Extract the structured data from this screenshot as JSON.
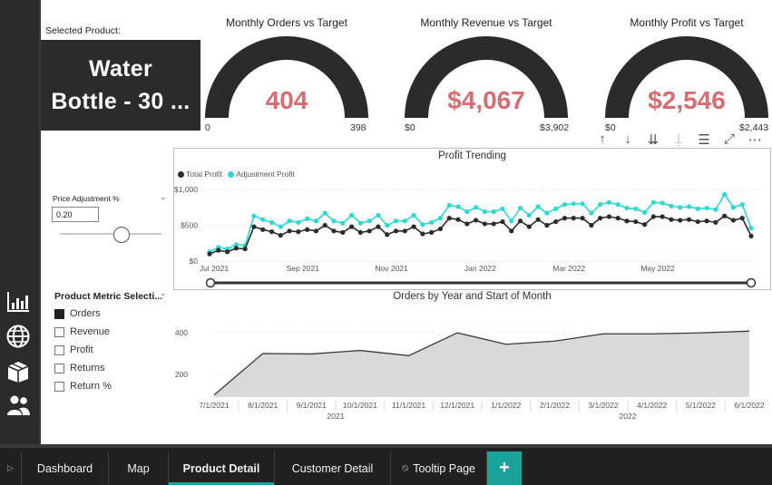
{
  "nav": {
    "icons": [
      "bar-chart-icon",
      "globe-icon",
      "box-icon",
      "users-icon"
    ]
  },
  "selected_product": {
    "label": "Selected Product:",
    "line1": "Water",
    "line2": "Bottle - 30 ..."
  },
  "gauges": [
    {
      "title": "Monthly Orders vs Target",
      "value": "404",
      "min": "0",
      "max": "398",
      "fraction": 1.0
    },
    {
      "title": "Monthly Revenue vs Target",
      "value": "$4,067",
      "min": "$0",
      "max": "$3,902",
      "fraction": 1.0
    },
    {
      "title": "Monthly Profit vs Target",
      "value": "$2,546",
      "min": "$0",
      "max": "$2,443",
      "fraction": 1.0
    }
  ],
  "visual_header_icons": [
    "arrow-up-icon",
    "arrow-down-icon",
    "double-arrow-down-icon",
    "expand-hierarchy-icon",
    "filter-icon",
    "focus-mode-icon",
    "more-options-icon"
  ],
  "price_adjustment": {
    "title": "Price Adjustment %",
    "value": "0.20",
    "slider_fraction": 0.6
  },
  "metric_selection": {
    "title": "Product Metric Selecti...",
    "items": [
      {
        "label": "Orders",
        "checked": true
      },
      {
        "label": "Revenue",
        "checked": false
      },
      {
        "label": "Profit",
        "checked": false
      },
      {
        "label": "Returns",
        "checked": false
      },
      {
        "label": "Return %",
        "checked": false
      }
    ]
  },
  "colors": {
    "dark": "#2b2b2b",
    "gauge_value": "#d96c72",
    "total_profit": "#2b2b2b",
    "adjustment_profit": "#2ed9d0",
    "accent": "#1aa39b",
    "area_fill": "#d9d9d9",
    "area_line": "#3a3a3a"
  },
  "chart_data": [
    {
      "type": "line",
      "title": "Profit Trending",
      "xlabel": "",
      "ylabel": "",
      "ylim": [
        0,
        1000
      ],
      "y_ticks": [
        "$0",
        "$500",
        "$1,000"
      ],
      "x_tick_labels": [
        "Jul 2021",
        "Sep 2021",
        "Nov 2021",
        "Jan 2022",
        "Mar 2022",
        "May 2022"
      ],
      "legend_placement": "top-left",
      "grid": true,
      "series": [
        {
          "name": "Total Profit",
          "values": [
            100,
            150,
            130,
            180,
            170,
            480,
            440,
            410,
            360,
            420,
            410,
            440,
            420,
            500,
            420,
            400,
            480,
            400,
            420,
            480,
            370,
            420,
            420,
            480,
            380,
            400,
            450,
            600,
            580,
            520,
            570,
            520,
            520,
            550,
            420,
            560,
            480,
            580,
            500,
            550,
            600,
            600,
            600,
            500,
            600,
            620,
            600,
            560,
            550,
            510,
            620,
            620,
            580,
            570,
            580,
            550,
            560,
            540,
            630,
            570,
            600,
            350
          ]
        },
        {
          "name": "Adjustment Profit",
          "values": [
            130,
            190,
            170,
            230,
            220,
            630,
            580,
            540,
            480,
            560,
            540,
            590,
            560,
            670,
            560,
            530,
            640,
            530,
            560,
            640,
            500,
            560,
            560,
            640,
            510,
            540,
            600,
            780,
            760,
            690,
            750,
            690,
            690,
            730,
            560,
            740,
            640,
            760,
            670,
            730,
            790,
            800,
            800,
            670,
            790,
            820,
            790,
            740,
            730,
            680,
            820,
            810,
            770,
            750,
            760,
            730,
            740,
            720,
            930,
            750,
            790,
            460
          ]
        }
      ]
    },
    {
      "type": "area",
      "title": "Orders by Year and Start of Month",
      "xlabel": "",
      "ylabel": "",
      "ylim": [
        90,
        440
      ],
      "y_ticks": [
        "200",
        "400"
      ],
      "categories": [
        "7/1/2021",
        "8/1/2021",
        "9/1/2021",
        "10/1/2021",
        "11/1/2021",
        "12/1/2021",
        "1/1/2022",
        "2/1/2022",
        "3/1/2022",
        "4/1/2022",
        "5/1/2022",
        "6/1/2022"
      ],
      "year_labels": [
        "2021",
        "2022"
      ],
      "series": [
        {
          "values": [
            100,
            300,
            298,
            315,
            290,
            400,
            345,
            360,
            395,
            395,
            400,
            408
          ]
        }
      ]
    }
  ],
  "tabs": {
    "items": [
      {
        "label": "Dashboard",
        "active": false
      },
      {
        "label": "Map",
        "active": false
      },
      {
        "label": "Product Detail",
        "active": true
      },
      {
        "label": "Customer Detail",
        "active": false
      },
      {
        "label": "Tooltip Page",
        "active": false,
        "icon": "tooltip-hidden-icon"
      }
    ],
    "add_label": "+"
  }
}
